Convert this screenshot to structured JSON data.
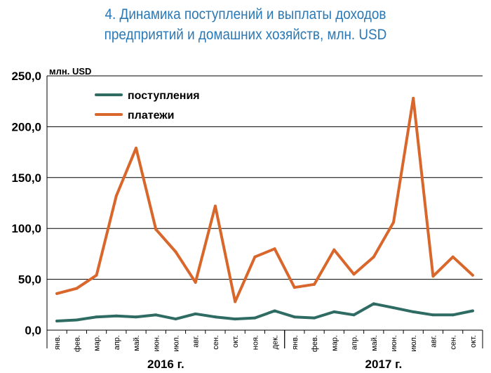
{
  "title_line1": "4. Динамика поступлений и выплаты доходов",
  "title_line2": "предприятий и домашних хозяйств, млн. USD",
  "chart_data": {
    "type": "line",
    "unit_label": "млн. USD",
    "ylim": [
      0,
      250
    ],
    "yticks": [
      "0,0",
      "50,0",
      "100,0",
      "150,0",
      "200,0",
      "250,0"
    ],
    "ytick_values": [
      0,
      50,
      100,
      150,
      200,
      250
    ],
    "grid": true,
    "legend_position": "top-left",
    "categories": [
      "янв.",
      "фев.",
      "мар.",
      "апр.",
      "май.",
      "июн.",
      "июл.",
      "авг.",
      "сен.",
      "окт.",
      "ноя.",
      "дек.",
      "янв.",
      "фев.",
      "мар.",
      "апр.",
      "май.",
      "июн.",
      "июл.",
      "авг.",
      "сен.",
      "окт."
    ],
    "year_groups": [
      {
        "label": "2016 г.",
        "start": 0,
        "end": 11
      },
      {
        "label": "2017 г.",
        "start": 12,
        "end": 21
      }
    ],
    "series": [
      {
        "name": "поступления",
        "color": "#2e6b63",
        "values": [
          9,
          10,
          13,
          14,
          13,
          15,
          11,
          16,
          13,
          11,
          12,
          19,
          13,
          12,
          18,
          15,
          26,
          22,
          18,
          15,
          15,
          19
        ]
      },
      {
        "name": "платежи",
        "color": "#d9662b",
        "values": [
          36,
          41,
          54,
          132,
          179,
          99,
          77,
          47,
          122,
          28,
          72,
          80,
          42,
          45,
          79,
          55,
          72,
          106,
          228,
          53,
          72,
          54
        ]
      }
    ]
  }
}
